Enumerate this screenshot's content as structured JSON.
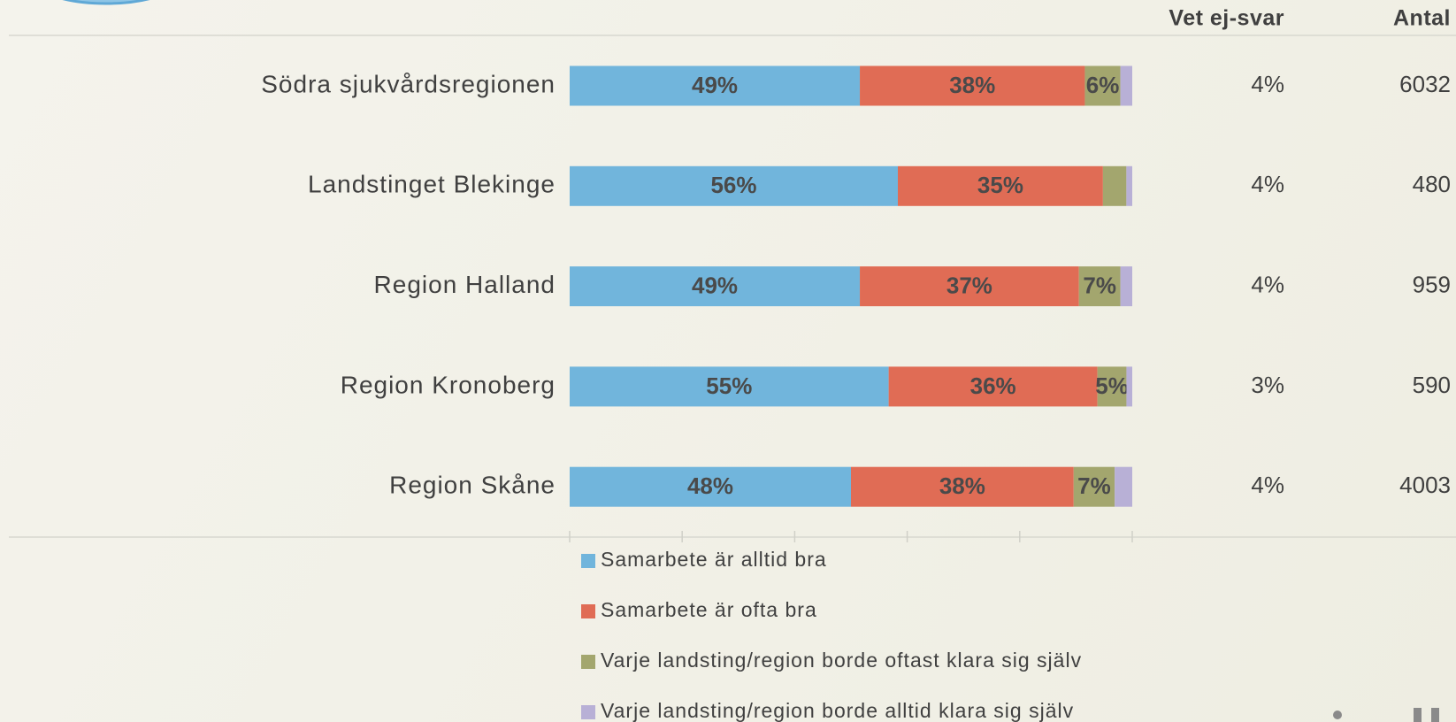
{
  "chart_data": {
    "type": "stacked_bar_horizontal",
    "categories": [
      "Södra sjukvårdsregionen",
      "Landstinget Blekinge",
      "Region Halland",
      "Region Kronoberg",
      "Region Skåne"
    ],
    "series": [
      {
        "name": "Samarbete är alltid bra",
        "color": "#71b5dc",
        "values": [
          49,
          56,
          49,
          55,
          48
        ],
        "value_labels": [
          "49%",
          "56%",
          "49%",
          "55%",
          "48%"
        ]
      },
      {
        "name": "Samarbete är ofta bra",
        "color": "#e06c55",
        "values": [
          38,
          35,
          37,
          36,
          38
        ],
        "value_labels": [
          "38%",
          "35%",
          "37%",
          "36%",
          "38%"
        ]
      },
      {
        "name": "Varje landsting/region borde oftast klara sig själv",
        "color": "#a3a66e",
        "values": [
          6,
          4,
          7,
          5,
          7
        ],
        "value_labels": [
          "6%",
          null,
          "7%",
          "5%",
          "7%"
        ]
      },
      {
        "name": "Varje landsting/region borde alltid klara sig själv",
        "color": "#b8b0d6",
        "values": [
          2,
          1,
          2,
          1,
          3
        ],
        "value_labels": [
          null,
          null,
          null,
          null,
          null
        ]
      }
    ],
    "xlim": [
      0,
      100
    ],
    "xticks": [
      0,
      20,
      40,
      60,
      80,
      100
    ],
    "columns": [
      {
        "header": "Vet ej-svar",
        "values": [
          4,
          4,
          4,
          3,
          4
        ],
        "value_labels": [
          "4%",
          "4%",
          "4%",
          "3%",
          "4%"
        ]
      },
      {
        "header": "Antal",
        "values": [
          6032,
          480,
          959,
          590,
          4003
        ]
      }
    ]
  }
}
